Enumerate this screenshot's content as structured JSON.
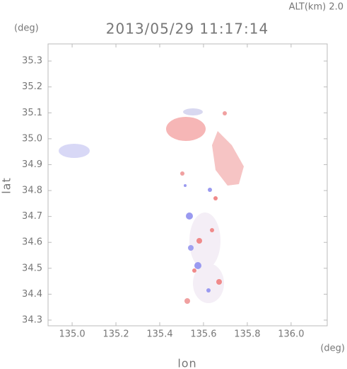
{
  "chart_data": {
    "type": "map",
    "title": "2013/05/29 11:17:14",
    "annotation": "ALT(km) 2.0",
    "y_unit": "(deg)",
    "x_unit": "(deg)",
    "x_label": "lon",
    "y_label": "lat",
    "xlim": [
      134.89,
      136.165
    ],
    "ylim": [
      34.278,
      35.366
    ],
    "xticks": [
      {
        "value": 135.0,
        "label": "135.0"
      },
      135.2,
      135.4,
      135.6,
      135.8,
      {
        "value": 136.0,
        "label": "136.0"
      }
    ],
    "yticks": [
      34.3,
      34.4,
      34.5,
      34.6,
      34.7,
      34.8,
      34.9,
      {
        "value": 35.0,
        "label": "35.0"
      },
      35.1,
      35.2,
      35.3
    ]
  }
}
